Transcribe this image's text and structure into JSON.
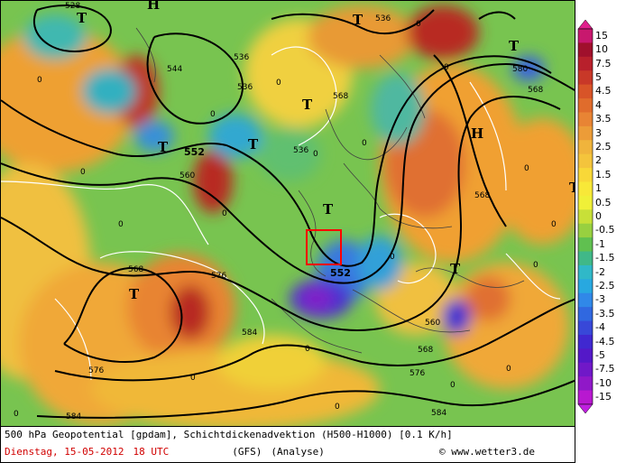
{
  "caption": {
    "description": "500 hPa Geopotential [gpdam], Schichtdickenadvektion (H500-H1000) [0.1 K/h]",
    "date": "Dienstag, 15-05-2012",
    "time": "18 UTC",
    "model": "(GFS)",
    "analysis": "(Analyse)",
    "copyright": "© www.wetter3.de"
  },
  "legend": {
    "labels": [
      "15",
      "10",
      "7.5",
      "5",
      "4.5",
      "4",
      "3.5",
      "3",
      "2.5",
      "2",
      "1.5",
      "1",
      "0.5",
      "0",
      "-0.5",
      "-1",
      "-1.5",
      "-2",
      "-2.5",
      "-3",
      "-3.5",
      "-4",
      "-4.5",
      "-5",
      "-7.5",
      "-10",
      "-15"
    ],
    "colors": [
      "#c8186e",
      "#a0102c",
      "#b8202c",
      "#c83828",
      "#d85428",
      "#e06c2c",
      "#e88434",
      "#ec9c38",
      "#f0b43c",
      "#f4c43c",
      "#f8d838",
      "#f8e838",
      "#f0f038",
      "#c8e038",
      "#98d040",
      "#60c050",
      "#40b888",
      "#30b8c8",
      "#28a8e0",
      "#3088e8",
      "#3068e0",
      "#3848d8",
      "#4028d0",
      "#5418c8",
      "#7018c8",
      "#9018c8",
      "#b818d0"
    ],
    "top_color": "#e0208c",
    "bottom_color": "#c020e0"
  },
  "map": {
    "contour_labels": [
      "536",
      "536",
      "544",
      "552",
      "560",
      "568",
      "568",
      "576",
      "576",
      "584",
      "584",
      "568",
      "560",
      "568",
      "576",
      "584",
      "568",
      "552",
      "536",
      "528",
      "580",
      "536"
    ],
    "pressure_centers": [
      "T",
      "T",
      "T",
      "T",
      "T",
      "T",
      "T",
      "T",
      "H",
      "H",
      "T",
      "T"
    ],
    "zero_labels": [
      "0",
      "0",
      "0",
      "0",
      "0",
      "0",
      "0",
      "0",
      "0",
      "0",
      "0",
      "0",
      "0",
      "0",
      "0",
      "0",
      "0",
      "0",
      "0",
      "0"
    ],
    "colors": {
      "warm_orange": "#f0a030",
      "warm_red": "#c03020",
      "neutral_yellow": "#f0e040",
      "neutral_green": "#70c050",
      "cold_cyan": "#30b0d0",
      "cold_blue": "#3050e0",
      "cold_violet": "#8020d0",
      "marker_red": "#ff0000"
    }
  }
}
